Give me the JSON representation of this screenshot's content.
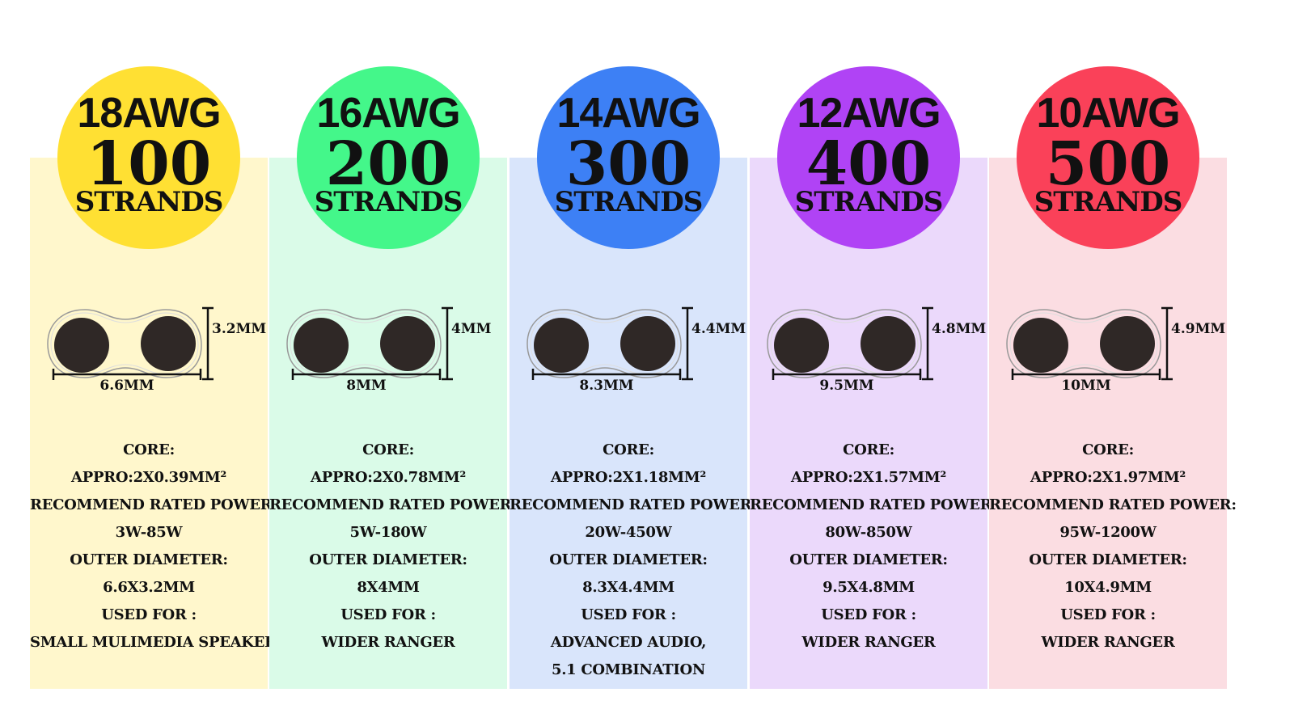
{
  "labels": {
    "strands": "STRANDS",
    "core": "CORE:",
    "power": "RECOMMEND RATED POWER:",
    "outer": "OUTER DIAMETER:",
    "used": "USED FOR :"
  },
  "columns": [
    {
      "gauge": "18AWG",
      "strands": "100",
      "height": "3.2MM",
      "width": "6.6MM",
      "core": "APPRO:2X0.39MM²",
      "power": "3W-85W",
      "outer": "6.6X3.2MM",
      "used": [
        "SMALL MULIMEDIA SPEAKER"
      ],
      "color": "#FFE033",
      "bg": "#FFF7CC"
    },
    {
      "gauge": "16AWG",
      "strands": "200",
      "height": "4MM",
      "width": "8MM",
      "core": "APPRO:2X0.78MM²",
      "power": "5W-180W",
      "outer": "8X4MM",
      "used": [
        "WIDER RANGER"
      ],
      "color": "#44F78A",
      "bg": "#DAFBE8"
    },
    {
      "gauge": "14AWG",
      "strands": "300",
      "height": "4.4MM",
      "width": "8.3MM",
      "core": "APPRO:2X1.18MM²",
      "power": "20W-450W",
      "outer": "8.3X4.4MM",
      "used": [
        "ADVANCED AUDIO,",
        "5.1 COMBINATION"
      ],
      "color": "#3D80F5",
      "bg": "#D9E5FB"
    },
    {
      "gauge": "12AWG",
      "strands": "400",
      "height": "4.8MM",
      "width": "9.5MM",
      "core": "APPRO:2X1.57MM²",
      "power": "80W-850W",
      "outer": "9.5X4.8MM",
      "used": [
        "WIDER RANGER"
      ],
      "color": "#B043F5",
      "bg": "#EBD9FB"
    },
    {
      "gauge": "10AWG",
      "strands": "500",
      "height": "4.9MM",
      "width": "10MM",
      "core": "APPRO:2X1.97MM²",
      "power": "95W-1200W",
      "outer": "10X4.9MM",
      "used": [
        "WIDER RANGER"
      ],
      "color": "#FA4159",
      "bg": "#FBDDE2"
    }
  ]
}
